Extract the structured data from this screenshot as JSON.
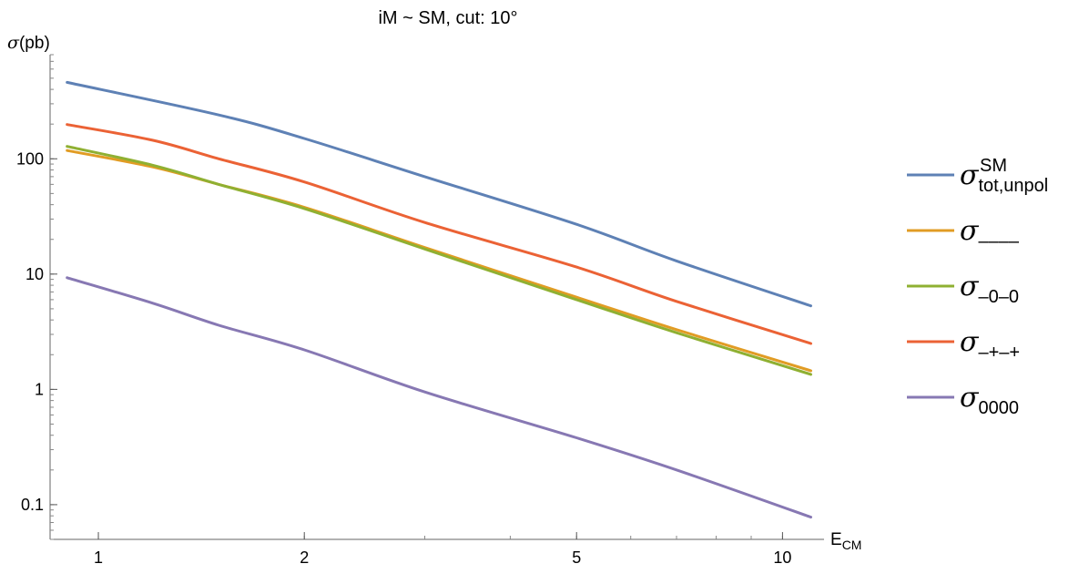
{
  "chart_data": {
    "type": "line",
    "title": "iM ~ SM,  cut: 10°",
    "ylabel": {
      "symbol": "σ",
      "unit": "(pb)"
    },
    "xlabel": {
      "main": "E",
      "sub": "CM"
    },
    "xscale": "log",
    "yscale": "log",
    "xlim": [
      0.85,
      11.5
    ],
    "ylim": [
      0.05,
      800
    ],
    "xticks": [
      {
        "value": 1,
        "label": "1"
      },
      {
        "value": 2,
        "label": "2"
      },
      {
        "value": 5,
        "label": "5"
      },
      {
        "value": 10,
        "label": "10"
      }
    ],
    "yticks": [
      {
        "value": 0.1,
        "label": "0.1"
      },
      {
        "value": 1,
        "label": "1"
      },
      {
        "value": 10,
        "label": "10"
      },
      {
        "value": 100,
        "label": "100"
      }
    ],
    "grid": false,
    "legend_position": "right",
    "series": [
      {
        "name": "tot,unpol",
        "legend_sub": "tot,unpol",
        "legend_sup": "SM",
        "color": "#5E81B5",
        "x": [
          0.9,
          1.5,
          2.0,
          3.0,
          5.0,
          7.0,
          11.0
        ],
        "y": [
          460,
          240,
          150,
          70,
          27,
          13,
          5.3
        ]
      },
      {
        "name": "----",
        "legend_sub": "––––",
        "legend_sup": "",
        "color": "#E19C24",
        "x": [
          0.9,
          1.2,
          1.5,
          2.0,
          3.0,
          5.0,
          7.0,
          11.0
        ],
        "y": [
          118,
          85,
          60,
          38,
          17,
          6.3,
          3.3,
          1.45
        ]
      },
      {
        "name": "-0-0",
        "legend_sub": "–0–0",
        "legend_sup": "",
        "color": "#8FB032",
        "x": [
          0.9,
          1.2,
          1.5,
          2.0,
          3.0,
          5.0,
          7.0,
          11.0
        ],
        "y": [
          128,
          88,
          60,
          37,
          16.5,
          6.0,
          3.1,
          1.35
        ]
      },
      {
        "name": "-+-+",
        "legend_sub": "–+–+",
        "legend_sup": "",
        "color": "#EB6235",
        "x": [
          0.9,
          1.2,
          1.5,
          2.0,
          3.0,
          5.0,
          7.0,
          11.0
        ],
        "y": [
          198,
          145,
          100,
          63,
          28,
          11.5,
          5.8,
          2.5
        ]
      },
      {
        "name": "0000",
        "legend_sub": "0000",
        "legend_sup": "",
        "color": "#8778B3",
        "x": [
          0.9,
          1.2,
          1.5,
          2.0,
          3.0,
          5.0,
          7.0,
          11.0
        ],
        "y": [
          9.3,
          5.6,
          3.6,
          2.2,
          0.95,
          0.38,
          0.2,
          0.078
        ]
      }
    ]
  }
}
